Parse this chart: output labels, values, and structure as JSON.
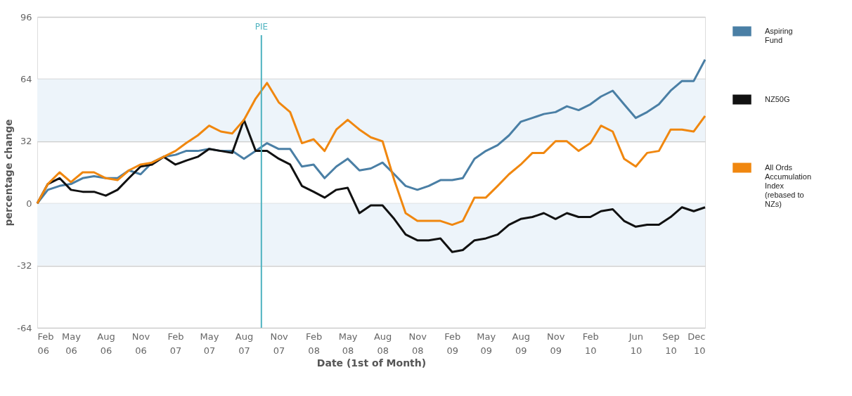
{
  "chart_data": {
    "type": "line",
    "xlabel": "Date (1st of Month)",
    "ylabel": "percentage change",
    "x": [
      "2006-02",
      "2006-03",
      "2006-04",
      "2006-05",
      "2006-06",
      "2006-07",
      "2006-08",
      "2006-09",
      "2006-10",
      "2006-11",
      "2006-12",
      "2007-01",
      "2007-02",
      "2007-03",
      "2007-04",
      "2007-05",
      "2007-06",
      "2007-07",
      "2007-08",
      "2007-09",
      "2007-10",
      "2007-11",
      "2007-12",
      "2008-01",
      "2008-02",
      "2008-03",
      "2008-04",
      "2008-05",
      "2008-06",
      "2008-07",
      "2008-08",
      "2008-09",
      "2008-10",
      "2008-11",
      "2008-12",
      "2009-01",
      "2009-02",
      "2009-03",
      "2009-04",
      "2009-05",
      "2009-06",
      "2009-07",
      "2009-08",
      "2009-09",
      "2009-10",
      "2009-11",
      "2009-12",
      "2010-01",
      "2010-02",
      "2010-03",
      "2010-04",
      "2010-05",
      "2010-06",
      "2010-07",
      "2010-08",
      "2010-09",
      "2010-10",
      "2010-11",
      "2010-12"
    ],
    "series": [
      {
        "name": "Aspiring Fund",
        "color": "#4a7fa5",
        "values": [
          0,
          7,
          9,
          10,
          13,
          14,
          13,
          13,
          17,
          15,
          21,
          24,
          25,
          27,
          27,
          28,
          27,
          27,
          23,
          27,
          31,
          28,
          28,
          19,
          20,
          13,
          19,
          23,
          17,
          18,
          21,
          15,
          9,
          7,
          9,
          12,
          12,
          13,
          23,
          27,
          30,
          35,
          42,
          44,
          46,
          47,
          50,
          48,
          51,
          55,
          58,
          51,
          44,
          47,
          51,
          58,
          63,
          63,
          74
        ]
      },
      {
        "name": "NZ50G",
        "color": "#111111",
        "values": [
          0,
          10,
          13,
          7,
          6,
          6,
          4,
          7,
          13,
          19,
          20,
          24,
          20,
          22,
          24,
          28,
          27,
          26,
          43,
          27,
          27,
          23,
          20,
          9,
          6,
          3,
          7,
          8,
          -5,
          -1,
          -1,
          -8,
          -16,
          -19,
          -19,
          -18,
          -25,
          -24,
          -19,
          -18,
          -16,
          -11,
          -8,
          -7,
          -5,
          -8,
          -5,
          -7,
          -7,
          -4,
          -3,
          -9,
          -12,
          -11,
          -11,
          -7,
          -2,
          -4,
          -2
        ]
      },
      {
        "name": "All Ords Accumulation Index (rebased to NZs)",
        "color": "#f0870f",
        "values": [
          0,
          10,
          16,
          11,
          16,
          16,
          13,
          12,
          17,
          20,
          21,
          24,
          27,
          31,
          35,
          40,
          37,
          36,
          43,
          54,
          62,
          52,
          47,
          31,
          33,
          27,
          38,
          43,
          38,
          34,
          32,
          12,
          -5,
          -9,
          -9,
          -9,
          -11,
          -9,
          3,
          3,
          9,
          15,
          20,
          26,
          26,
          32,
          32,
          27,
          31,
          40,
          37,
          23,
          19,
          26,
          27,
          38,
          38,
          37,
          45
        ]
      }
    ],
    "xlim": [
      "2006-02",
      "2010-12"
    ],
    "xticks": [
      {
        "value": "2006-02",
        "label": "Feb 06"
      },
      {
        "value": "2006-05",
        "label": "May 06"
      },
      {
        "value": "2006-08",
        "label": "Aug 06"
      },
      {
        "value": "2006-11",
        "label": "Nov 06"
      },
      {
        "value": "2007-02",
        "label": "Feb 07"
      },
      {
        "value": "2007-05",
        "label": "May 07"
      },
      {
        "value": "2007-08",
        "label": "Aug 07"
      },
      {
        "value": "2007-11",
        "label": "Nov 07"
      },
      {
        "value": "2008-02",
        "label": "Feb 08"
      },
      {
        "value": "2008-05",
        "label": "May 08"
      },
      {
        "value": "2008-08",
        "label": "Aug 08"
      },
      {
        "value": "2008-11",
        "label": "Nov 08"
      },
      {
        "value": "2009-02",
        "label": "Feb 09"
      },
      {
        "value": "2009-05",
        "label": "May 09"
      },
      {
        "value": "2009-08",
        "label": "Aug 09"
      },
      {
        "value": "2009-11",
        "label": "Nov 09"
      },
      {
        "value": "2010-02",
        "label": "Feb 10"
      },
      {
        "value": "2010-06",
        "label": "Jun 10"
      },
      {
        "value": "2010-09",
        "label": "Sep 10"
      },
      {
        "value": "2010-12",
        "label": "Dec 10"
      }
    ],
    "ylim": [
      -64,
      96
    ],
    "yticks": [
      -64,
      -32,
      0,
      32,
      64,
      96
    ],
    "bands": [
      {
        "axis": "y",
        "from": 32,
        "to": 64,
        "color": "#edf4fa"
      },
      {
        "axis": "y",
        "from": -32,
        "to": 0,
        "color": "#edf4fa"
      }
    ],
    "ref_lines": [
      {
        "axis": "x",
        "value": "2007-09-16",
        "label": "PIE",
        "color": "#4fb3c0"
      }
    ],
    "grid": "y",
    "legend": "right",
    "line_style": "solid"
  }
}
